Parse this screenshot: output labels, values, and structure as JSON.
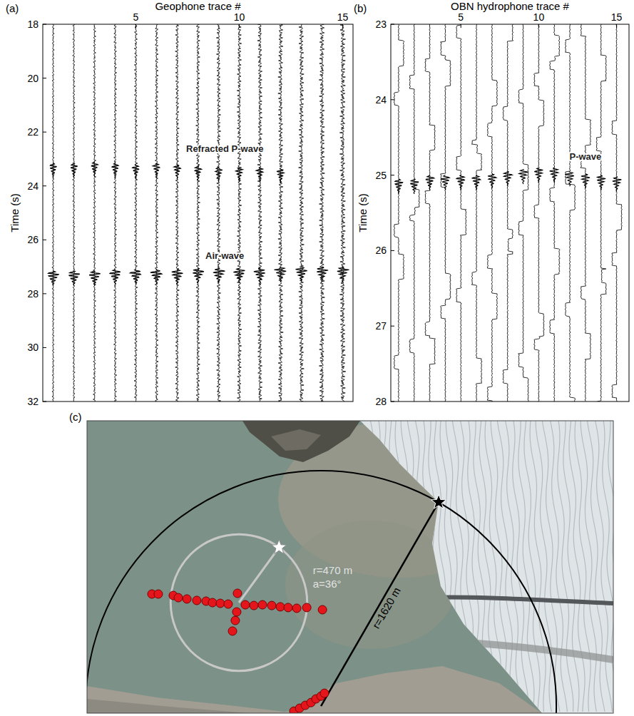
{
  "chart_data": [
    {
      "type": "wiggle",
      "panel": "(a)",
      "x_label": "Geophone trace #",
      "y_label": "Time (s)",
      "x": [
        1,
        2,
        3,
        4,
        5,
        6,
        7,
        8,
        9,
        10,
        11,
        12,
        13,
        14,
        15
      ],
      "xlim": [
        0.5,
        15.5
      ],
      "xticks": [
        5,
        10,
        15
      ],
      "ylim": [
        18,
        32
      ],
      "yticks": [
        18,
        20,
        22,
        24,
        26,
        28,
        30,
        32
      ],
      "arrivals": [
        {
          "label": "Refracted P-wave",
          "label_x": 9.3,
          "label_y": 22.75,
          "times": [
            23.15,
            23.15,
            23.1,
            23.15,
            23.2,
            23.15,
            23.2,
            23.25,
            23.3,
            23.3,
            23.3,
            23.35,
            null,
            null,
            null
          ]
        },
        {
          "label": "Air-wave",
          "label_x": 9.3,
          "label_y": 26.7,
          "times": [
            27.15,
            27.15,
            27.15,
            27.1,
            27.1,
            27.1,
            27.1,
            27.05,
            27.05,
            27.05,
            27.05,
            27.0,
            27.0,
            27.0,
            27.0
          ]
        }
      ]
    },
    {
      "type": "wiggle",
      "panel": "(b)",
      "x_label": "OBN hydrophone trace #",
      "y_label": "Time (s)",
      "x": [
        1,
        2,
        3,
        4,
        5,
        6,
        7,
        8,
        9,
        10,
        11,
        12,
        13,
        14,
        15
      ],
      "xlim": [
        0.5,
        15.8
      ],
      "xticks": [
        5,
        10,
        15
      ],
      "ylim": [
        23,
        28
      ],
      "yticks": [
        23,
        24,
        25,
        26,
        27,
        28
      ],
      "arrivals": [
        {
          "label": "P-wave",
          "label_x": 13,
          "label_y": 24.8,
          "times": [
            25.05,
            25.05,
            25.0,
            25.0,
            25.0,
            25.0,
            24.98,
            24.95,
            24.92,
            24.9,
            24.9,
            24.95,
            24.98,
            25.0,
            25.02
          ]
        }
      ]
    },
    {
      "type": "map",
      "panel": "(c)",
      "arrays": [
        {
          "color": "#e4161c",
          "east": [
            -599,
            -555,
            -452,
            -417,
            -358,
            -290,
            -226,
            -182,
            -128,
            -74,
            44,
            103,
            162,
            226,
            285,
            339,
            398,
            467,
            575,
            -10,
            -15,
            -25,
            -44
          ],
          "north": [
            59,
            59,
            49,
            34,
            25,
            15,
            10,
            0,
            -5,
            -10,
            -15,
            -20,
            -15,
            -20,
            -29,
            -34,
            -39,
            -34,
            -49,
            64,
            -64,
            -123,
            -196
          ]
        },
        {
          "color": "#e4161c",
          "east": [
            378,
            418,
            457,
            496,
            530,
            565,
            589
          ],
          "north": [
            -747,
            -727,
            -707,
            -688,
            -663,
            -644,
            -624
          ]
        }
      ],
      "rings": [
        {
          "label": "r=470 m",
          "r": 470,
          "angle_label": "a=36°",
          "a": 36,
          "center": [
            0,
            0
          ],
          "color": "#c8c8c8"
        },
        {
          "label": "r=1620 m",
          "r": 1620,
          "center": [
            565,
            -712
          ],
          "azimuth": 30,
          "color": "#000000"
        }
      ]
    }
  ]
}
